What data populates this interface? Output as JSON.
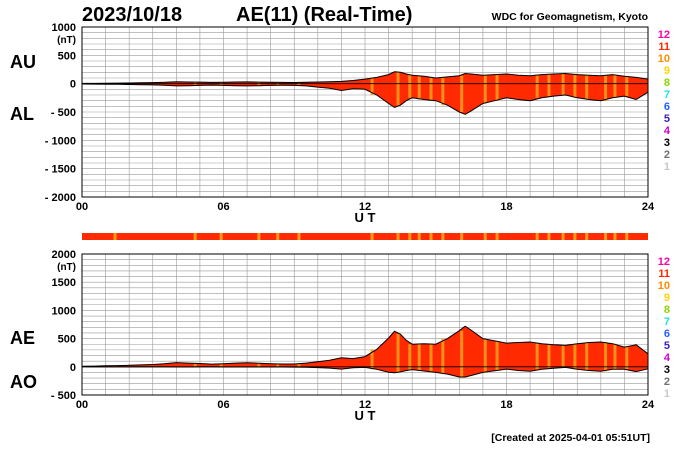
{
  "header": {
    "date": "2023/10/18",
    "title": "AE(11) (Real-Time)",
    "source": "WDC for Geomagnetism, Kyoto"
  },
  "footer": {
    "created": "[Created at 2025-04-01 05:51UT]"
  },
  "legend": {
    "levels": [
      "12",
      "11",
      "10",
      "9",
      "8",
      "7",
      "6",
      "5",
      "4",
      "3",
      "2",
      "1"
    ],
    "colors": [
      "#ff00aa",
      "#ff2a00",
      "#ff8c00",
      "#ffd400",
      "#8cd600",
      "#20e0e0",
      "#2060ff",
      "#4020c0",
      "#d000d0",
      "#000000",
      "#707070",
      "#c8c8c8"
    ]
  },
  "chart_data": [
    {
      "type": "area",
      "name": "AU/AL",
      "panel_labels": [
        "AU",
        "AL"
      ],
      "x_ticks": [
        "00",
        "06",
        "12",
        "18",
        "24"
      ],
      "xlabel": "U T",
      "y_unit": "(nT)",
      "y_ticks": [
        "1000",
        "500",
        "0",
        "- 500",
        "- 1000",
        "- 1500",
        "- 2000"
      ],
      "ylim": [
        -2000,
        1000
      ],
      "xlim": [
        0,
        24
      ],
      "grid": true,
      "fill_color": "#ff2a00",
      "series": [
        {
          "name": "AU",
          "x": [
            0,
            0.5,
            1,
            1.5,
            2,
            2.5,
            3,
            3.5,
            4,
            4.5,
            5,
            5.5,
            6,
            6.5,
            7,
            7.5,
            8,
            8.5,
            9,
            9.5,
            10,
            10.5,
            11,
            11.5,
            12,
            12.5,
            13,
            13.25,
            13.5,
            13.75,
            14,
            14.5,
            15,
            15.5,
            16,
            16.25,
            16.5,
            17,
            17.5,
            18,
            18.5,
            19,
            19.5,
            20,
            20.5,
            21,
            21.5,
            22,
            22.5,
            23,
            23.5,
            24
          ],
          "values": [
            5,
            5,
            8,
            10,
            12,
            15,
            18,
            25,
            35,
            30,
            28,
            22,
            25,
            30,
            32,
            28,
            25,
            22,
            20,
            25,
            30,
            35,
            40,
            55,
            80,
            110,
            160,
            210,
            200,
            170,
            150,
            130,
            100,
            120,
            140,
            180,
            170,
            150,
            160,
            170,
            150,
            140,
            160,
            170,
            180,
            160,
            150,
            140,
            160,
            130,
            110,
            80
          ]
        },
        {
          "name": "AL",
          "x": [
            0,
            0.5,
            1,
            1.5,
            2,
            2.5,
            3,
            3.5,
            4,
            4.5,
            5,
            5.5,
            6,
            6.5,
            7,
            7.5,
            8,
            8.5,
            9,
            9.5,
            10,
            10.5,
            11,
            11.5,
            12,
            12.5,
            13,
            13.25,
            13.5,
            13.75,
            14,
            14.5,
            15,
            15.5,
            16,
            16.25,
            16.5,
            17,
            17.5,
            18,
            18.5,
            19,
            19.5,
            20,
            20.5,
            21,
            21.5,
            22,
            22.5,
            23,
            23.5,
            24
          ],
          "values": [
            -5,
            -8,
            -10,
            -12,
            -15,
            -18,
            -22,
            -28,
            -40,
            -35,
            -30,
            -25,
            -30,
            -35,
            -40,
            -35,
            -30,
            -28,
            -30,
            -40,
            -60,
            -80,
            -120,
            -90,
            -100,
            -200,
            -350,
            -420,
            -380,
            -300,
            -250,
            -280,
            -300,
            -380,
            -500,
            -540,
            -480,
            -350,
            -300,
            -250,
            -280,
            -300,
            -250,
            -220,
            -200,
            -250,
            -280,
            -300,
            -250,
            -220,
            -280,
            -150
          ]
        }
      ]
    },
    {
      "type": "area",
      "name": "AE/AO",
      "panel_labels": [
        "AE",
        "AO"
      ],
      "x_ticks": [
        "00",
        "06",
        "12",
        "18",
        "24"
      ],
      "xlabel": "U T",
      "y_unit": "(nT)",
      "y_ticks": [
        "2000",
        "1500",
        "1000",
        "500",
        "0",
        "- 500"
      ],
      "ylim": [
        -500,
        2000
      ],
      "xlim": [
        0,
        24
      ],
      "grid": true,
      "fill_color": "#ff2a00",
      "series": [
        {
          "name": "AE",
          "x": [
            0,
            0.5,
            1,
            1.5,
            2,
            2.5,
            3,
            3.5,
            4,
            4.5,
            5,
            5.5,
            6,
            6.5,
            7,
            7.5,
            8,
            8.5,
            9,
            9.5,
            10,
            10.5,
            11,
            11.5,
            12,
            12.5,
            13,
            13.25,
            13.5,
            13.75,
            14,
            14.5,
            15,
            15.5,
            16,
            16.25,
            16.5,
            17,
            17.5,
            18,
            18.5,
            19,
            19.5,
            20,
            20.5,
            21,
            21.5,
            22,
            22.5,
            23,
            23.5,
            24
          ],
          "values": [
            10,
            13,
            18,
            22,
            27,
            33,
            40,
            53,
            75,
            65,
            58,
            47,
            55,
            65,
            72,
            63,
            55,
            50,
            50,
            65,
            90,
            115,
            160,
            145,
            180,
            310,
            510,
            630,
            580,
            470,
            400,
            410,
            400,
            500,
            640,
            720,
            650,
            500,
            460,
            420,
            430,
            440,
            410,
            390,
            380,
            410,
            430,
            440,
            410,
            350,
            390,
            230
          ]
        },
        {
          "name": "AO",
          "x": [
            0,
            0.5,
            1,
            1.5,
            2,
            2.5,
            3,
            3.5,
            4,
            4.5,
            5,
            5.5,
            6,
            6.5,
            7,
            7.5,
            8,
            8.5,
            9,
            9.5,
            10,
            10.5,
            11,
            11.5,
            12,
            12.5,
            13,
            13.25,
            13.5,
            13.75,
            14,
            14.5,
            15,
            15.5,
            16,
            16.25,
            16.5,
            17,
            17.5,
            18,
            18.5,
            19,
            19.5,
            20,
            20.5,
            21,
            21.5,
            22,
            22.5,
            23,
            23.5,
            24
          ],
          "values": [
            0,
            -2,
            -1,
            -1,
            -2,
            -2,
            -2,
            -2,
            -3,
            -3,
            -1,
            -2,
            -3,
            -3,
            -4,
            -4,
            -3,
            -3,
            -5,
            -8,
            -15,
            -23,
            -40,
            -18,
            -10,
            -45,
            -95,
            -105,
            -90,
            -65,
            -50,
            -75,
            -100,
            -130,
            -180,
            -180,
            -155,
            -100,
            -70,
            -40,
            -65,
            -80,
            -45,
            -25,
            -10,
            -45,
            -65,
            -80,
            -45,
            -45,
            -85,
            -35
          ]
        }
      ]
    }
  ],
  "activity_bar": {
    "color": "#ff2a00",
    "highlight_color": "#ff9a1a",
    "highlight_hours": [
      1.4,
      4.8,
      5.9,
      7.5,
      8.3,
      9.2,
      12.3,
      13.4,
      13.9,
      14.3,
      14.8,
      15.3,
      16.1,
      17.1,
      17.6,
      19.3,
      19.8,
      20.4,
      20.9,
      21.4,
      22.2,
      22.6,
      23.1
    ]
  }
}
